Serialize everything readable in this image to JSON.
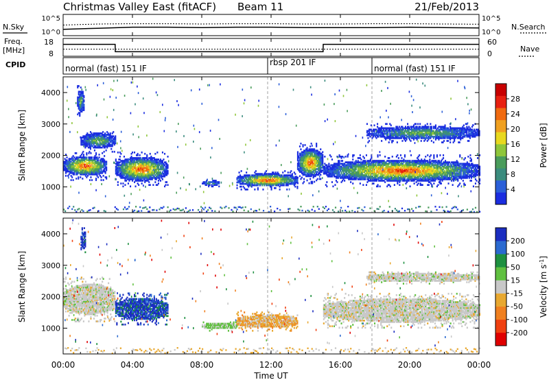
{
  "header": {
    "title": "Christmas Valley East (fitACF)",
    "beam": "Beam 11",
    "date": "21/Feb/2013"
  },
  "nsky_panel": {
    "left_label": "N.Sky",
    "right_label": "N.Search",
    "ticks_left": [
      "10^5",
      "10^0"
    ],
    "ticks_right": [
      "10^5",
      "10^0"
    ]
  },
  "freq_panel": {
    "left_label_1": "Freq.",
    "left_label_2": "[MHz]",
    "right_label": "Nave",
    "ticks_left": [
      "18",
      "8"
    ],
    "ticks_right": [
      "60",
      "0"
    ]
  },
  "cpid_panel": {
    "label": "CPID",
    "segments": [
      {
        "name": "normal (fast) 151 IF",
        "start_h": 0,
        "end_h": 12
      },
      {
        "name": "rbsp 201 IF",
        "start_h": 12,
        "end_h": 18
      },
      {
        "name": "normal (fast) 151 IF",
        "start_h": 18,
        "end_h": 24
      }
    ]
  },
  "xaxis": {
    "label": "Time UT",
    "ticks": [
      "00:00",
      "04:00",
      "08:00",
      "12:00",
      "16:00",
      "20:00",
      "00:00"
    ]
  },
  "power_panel": {
    "ylabel": "Slant Range [km]",
    "yticks": [
      "4000",
      "3000",
      "2000",
      "1000"
    ],
    "colorbar_label": "Power [dB]",
    "colorbar_ticks": [
      "28",
      "24",
      "20",
      "16",
      "12",
      "8",
      "4"
    ],
    "colors": [
      "#1b2de0",
      "#2b5fd8",
      "#3b8c7e",
      "#4a9c5b",
      "#8fc63a",
      "#e8d81e",
      "#f0a020",
      "#f06a10",
      "#e82010",
      "#c80000"
    ]
  },
  "velocity_panel": {
    "ylabel": "Slant Range [km]",
    "yticks": [
      "4000",
      "3000",
      "2000",
      "1000"
    ],
    "colorbar_label": "Velocity [m s",
    "colorbar_label_sup": "-1",
    "colorbar_label_end": "]",
    "colorbar_ticks": [
      "200",
      "100",
      "50",
      "15",
      "-15",
      "-50",
      "-100",
      "-200"
    ],
    "colors": [
      "#1b2dc0",
      "#2b6ad0",
      "#1e9040",
      "#60c040",
      "#c8c8c8",
      "#e8a830",
      "#f08020",
      "#f04010",
      "#e00000"
    ]
  },
  "chart_data": [
    {
      "type": "line",
      "title": "N.Sky / N.Search",
      "x": [
        0,
        2,
        4,
        6,
        8,
        10,
        12,
        14,
        16,
        18,
        20,
        22,
        24
      ],
      "series": [
        {
          "name": "N.Sky",
          "values": [
            0.7,
            0.65,
            0.6,
            0.6,
            0.62,
            0.6,
            0.6,
            0.62,
            0.62,
            0.62,
            0.6,
            0.62,
            0.64
          ]
        },
        {
          "name": "N.Search",
          "values": [
            0.5,
            0.45,
            0.44,
            0.44,
            0.45,
            0.44,
            0.44,
            0.45,
            0.45,
            0.44,
            0.44,
            0.45,
            0.46
          ]
        }
      ]
    },
    {
      "type": "line",
      "title": "Freq / Nave",
      "x": [
        0,
        3,
        3.01,
        15,
        15.01,
        24
      ],
      "series": [
        {
          "name": "Freq",
          "values": [
            16,
            16,
            10,
            10,
            16,
            16
          ]
        },
        {
          "name": "Nave",
          "values": [
            28,
            28,
            28,
            28,
            28,
            28
          ]
        }
      ]
    },
    {
      "type": "heatmap",
      "title": "Power",
      "xlabel": "Time UT",
      "ylabel": "Slant Range [km]",
      "xlim": [
        0,
        24
      ],
      "ylim": [
        180,
        4500
      ],
      "echo_regions": [
        {
          "t": [
            0,
            2.5
          ],
          "range": [
            1200,
            2100
          ],
          "power": "high"
        },
        {
          "t": [
            1,
            3
          ],
          "range": [
            2100,
            2800
          ],
          "power": "medium"
        },
        {
          "t": [
            0.8,
            1.2
          ],
          "range": [
            3200,
            4200
          ],
          "power": "medium"
        },
        {
          "t": [
            3,
            6
          ],
          "range": [
            1000,
            2100
          ],
          "power": "high"
        },
        {
          "t": [
            8,
            9
          ],
          "range": [
            1000,
            1200
          ],
          "power": "medium"
        },
        {
          "t": [
            10,
            13.5
          ],
          "range": [
            900,
            1500
          ],
          "power": "high"
        },
        {
          "t": [
            13.5,
            15
          ],
          "range": [
            1100,
            2400
          ],
          "power": "high"
        },
        {
          "t": [
            15,
            24
          ],
          "range": [
            1000,
            2000
          ],
          "power": "high"
        },
        {
          "t": [
            17.5,
            24
          ],
          "range": [
            2400,
            3000
          ],
          "power": "medium"
        }
      ]
    },
    {
      "type": "heatmap",
      "title": "Velocity",
      "xlabel": "Time UT",
      "ylabel": "Slant Range [km]",
      "xlim": [
        0,
        24
      ],
      "ylim": [
        180,
        4500
      ],
      "echo_regions": [
        {
          "t": [
            0,
            3
          ],
          "range": [
            1200,
            2600
          ],
          "velocity": "near-zero"
        },
        {
          "t": [
            1,
            1.3
          ],
          "range": [
            3400,
            4200
          ],
          "velocity": "positive"
        },
        {
          "t": [
            3,
            6
          ],
          "range": [
            1100,
            2100
          ],
          "velocity": "positive"
        },
        {
          "t": [
            8,
            10
          ],
          "range": [
            900,
            1200
          ],
          "velocity": "slightly-positive"
        },
        {
          "t": [
            10,
            13.5
          ],
          "range": [
            900,
            1500
          ],
          "velocity": "slightly-negative"
        },
        {
          "t": [
            15,
            24
          ],
          "range": [
            1000,
            2100
          ],
          "velocity": "near-zero"
        },
        {
          "t": [
            17.5,
            24
          ],
          "range": [
            2400,
            2800
          ],
          "velocity": "near-zero"
        }
      ]
    }
  ]
}
